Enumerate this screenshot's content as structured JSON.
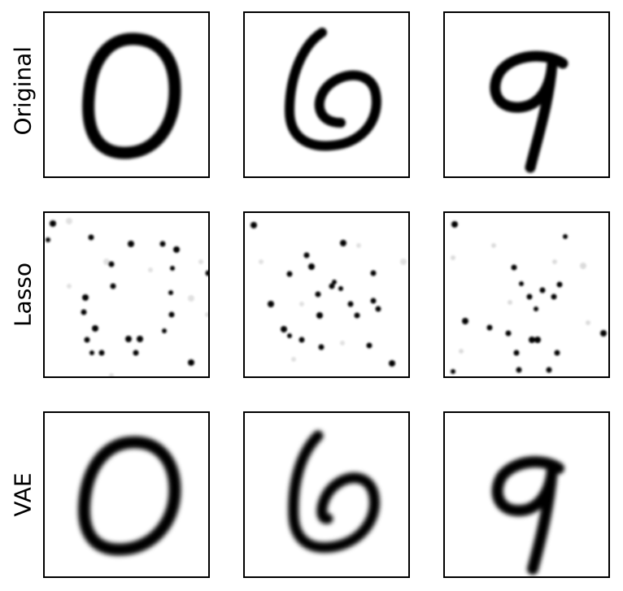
{
  "figure": {
    "rows": [
      {
        "label": "Original",
        "kind": "original"
      },
      {
        "label": "Lasso",
        "kind": "lasso"
      },
      {
        "label": "VAE",
        "kind": "vae"
      }
    ],
    "digits": [
      "0",
      "6",
      "9"
    ],
    "colors": {
      "ink": "#000000",
      "background": "#ffffff",
      "frame": "#000000"
    }
  }
}
